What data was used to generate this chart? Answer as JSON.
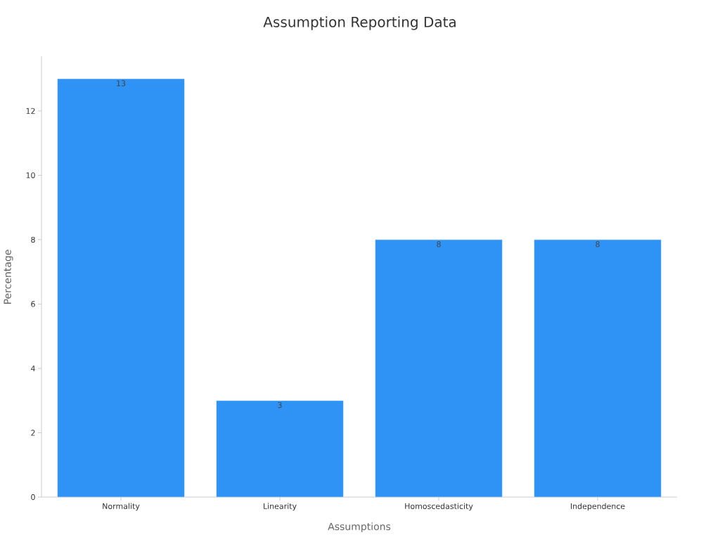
{
  "chart_data": {
    "type": "bar",
    "title": "Assumption Reporting Data",
    "xlabel": "Assumptions",
    "ylabel": "Percentage",
    "categories": [
      "Normality",
      "Linearity",
      "Homoscedasticity",
      "Independence"
    ],
    "values": [
      13,
      3,
      8,
      8
    ],
    "color": "#2e93f5",
    "data_labels": true,
    "ylim": [
      0,
      13.7
    ],
    "yticks": [
      0,
      2,
      4,
      6,
      8,
      10,
      12
    ],
    "grid": false
  }
}
